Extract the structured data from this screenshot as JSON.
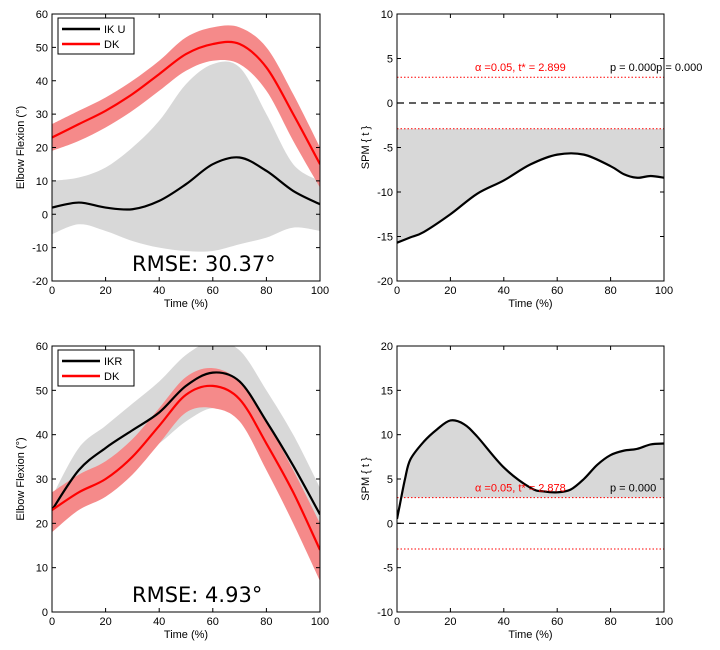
{
  "figure": {
    "colors": {
      "ik": "#000000",
      "dk": "#ff0000",
      "dk_band": "#f58a8a",
      "gray_band": "#d8d8d8",
      "threshold_text": "#ff0000",
      "threshold_line": "#ff0000"
    }
  },
  "chart_data": [
    {
      "type": "line",
      "xlabel": "Time (%)",
      "ylabel": "Elbow Flexion (°)",
      "xlim": [
        0,
        100
      ],
      "ylim": [
        -20,
        60
      ],
      "xticks": [
        0,
        20,
        40,
        60,
        80,
        100
      ],
      "yticks": [
        -20,
        -10,
        0,
        10,
        20,
        30,
        40,
        50,
        60
      ],
      "legend": {
        "placement": "top-left",
        "entries": [
          "IK U",
          "DK"
        ]
      },
      "annotation": "RMSE: 30.37°",
      "x": [
        0,
        10,
        20,
        30,
        40,
        50,
        60,
        70,
        80,
        90,
        100
      ],
      "series": [
        {
          "name": "IK U",
          "values": [
            2,
            3.5,
            2,
            1.5,
            4,
            9,
            15,
            17,
            13,
            7,
            3
          ],
          "band_lower": [
            -6,
            -3,
            -5,
            -8,
            -10,
            -11,
            -11,
            -9,
            -7,
            -4,
            -5
          ],
          "band_upper": [
            10,
            11,
            14,
            20,
            28,
            39,
            45,
            44,
            30,
            15,
            10
          ]
        },
        {
          "name": "DK",
          "values": [
            23,
            27,
            31,
            36,
            42,
            48,
            51,
            51,
            44,
            30,
            15
          ],
          "band_lower": [
            19,
            22,
            26,
            31,
            37,
            43,
            46,
            45,
            37,
            22,
            8
          ],
          "band_upper": [
            27,
            31,
            35,
            40,
            46,
            53,
            56,
            56,
            50,
            36,
            20
          ]
        }
      ]
    },
    {
      "type": "line",
      "xlabel": "Time (%)",
      "ylabel": "SPM { t }",
      "xlim": [
        0,
        100
      ],
      "ylim": [
        -20,
        10
      ],
      "xticks": [
        0,
        20,
        40,
        60,
        80,
        100
      ],
      "yticks": [
        -20,
        -15,
        -10,
        -5,
        0,
        5,
        10
      ],
      "thresholds": [
        2.9,
        -2.9
      ],
      "threshold_text": "α  =0.05,      t* = 2.899",
      "p_text": "p = 0.000p = 0.000",
      "x": [
        0,
        5,
        10,
        20,
        30,
        40,
        50,
        60,
        70,
        80,
        85,
        90,
        95,
        100
      ],
      "series": [
        {
          "name": "SPM{t}",
          "values": [
            -15.7,
            -15.1,
            -14.5,
            -12.5,
            -10.2,
            -8.7,
            -6.9,
            -5.8,
            -5.8,
            -7.1,
            -8.0,
            -8.4,
            -8.2,
            -8.4
          ]
        }
      ]
    },
    {
      "type": "line",
      "xlabel": "Time (%)",
      "ylabel": "Elbow Flexion (°)",
      "xlim": [
        0,
        100
      ],
      "ylim": [
        0,
        60
      ],
      "xticks": [
        0,
        20,
        40,
        60,
        80,
        100
      ],
      "yticks": [
        0,
        10,
        20,
        30,
        40,
        50,
        60
      ],
      "legend": {
        "placement": "top-left",
        "entries": [
          "IKR",
          "DK"
        ]
      },
      "annotation": "RMSE: 4.93°",
      "x": [
        0,
        10,
        20,
        30,
        40,
        50,
        60,
        70,
        80,
        90,
        100
      ],
      "series": [
        {
          "name": "IKR",
          "values": [
            23,
            32,
            37,
            41,
            45,
            51,
            54,
            52,
            43,
            33,
            22
          ],
          "band_lower": [
            19,
            25,
            30,
            34,
            38,
            43,
            46,
            44,
            35,
            25,
            17
          ],
          "band_upper": [
            26,
            37,
            42,
            47,
            52,
            58,
            61,
            59,
            50,
            40,
            28
          ]
        },
        {
          "name": "DK",
          "values": [
            23,
            27,
            30,
            35,
            42,
            49,
            51,
            48,
            38,
            27,
            14
          ],
          "band_lower": [
            18,
            23,
            26,
            31,
            38,
            45,
            46,
            43,
            32,
            20,
            7
          ],
          "band_upper": [
            27,
            31,
            34,
            39,
            46,
            53,
            55,
            52,
            43,
            32,
            20
          ]
        }
      ]
    },
    {
      "type": "line",
      "xlabel": "Time (%)",
      "ylabel": "SPM { t }",
      "xlim": [
        0,
        100
      ],
      "ylim": [
        -10,
        20
      ],
      "xticks": [
        0,
        20,
        40,
        60,
        80,
        100
      ],
      "yticks": [
        -10,
        -5,
        0,
        5,
        10,
        15,
        20
      ],
      "thresholds": [
        2.9,
        -2.9
      ],
      "threshold_text": "α  =0.05,      t* = 2.878",
      "p_text": "p = 0.000",
      "x": [
        0,
        1,
        3,
        5,
        10,
        15,
        20,
        25,
        30,
        40,
        50,
        55,
        60,
        65,
        70,
        75,
        80,
        85,
        90,
        95,
        100
      ],
      "series": [
        {
          "name": "SPM{t}",
          "values": [
            0.5,
            2,
            5,
            7.2,
            9.2,
            10.6,
            11.6,
            11.2,
            9.8,
            6.3,
            4.0,
            3.6,
            3.5,
            3.8,
            5.0,
            6.6,
            7.7,
            8.2,
            8.4,
            8.9,
            9.0
          ]
        }
      ]
    }
  ]
}
